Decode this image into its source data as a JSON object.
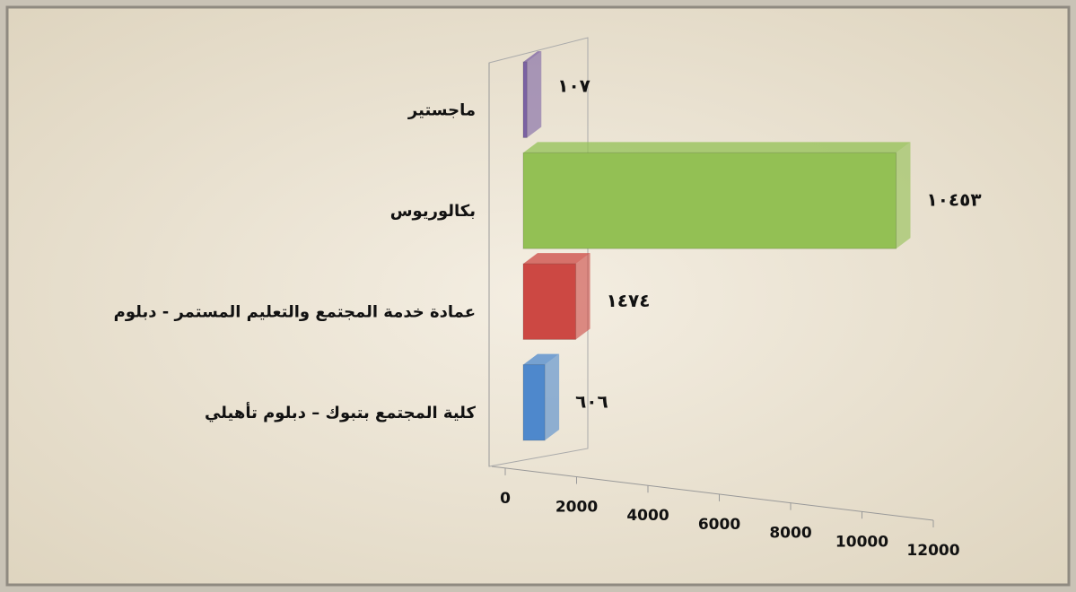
{
  "chart_data": {
    "type": "bar",
    "orientation": "horizontal",
    "categories": [
      "ماجستير",
      "بكالوريوس",
      "عمادة خدمة المجتمع والتعليم المستمر - دبلوم",
      "كلية المجتمع بتبوك – دبلوم تأهيلي"
    ],
    "values": [
      107,
      10453,
      1474,
      606
    ],
    "value_labels": [
      "١٠٧",
      "١٠٤٥٣",
      "١٤٧٤",
      "٦٠٦"
    ],
    "colors": [
      "#7b62a3",
      "#93c054",
      "#cc4843",
      "#4e88cc"
    ],
    "xlim": [
      0,
      12000
    ],
    "xticks": [
      0,
      2000,
      4000,
      6000,
      8000,
      10000,
      12000
    ],
    "grid": false
  }
}
